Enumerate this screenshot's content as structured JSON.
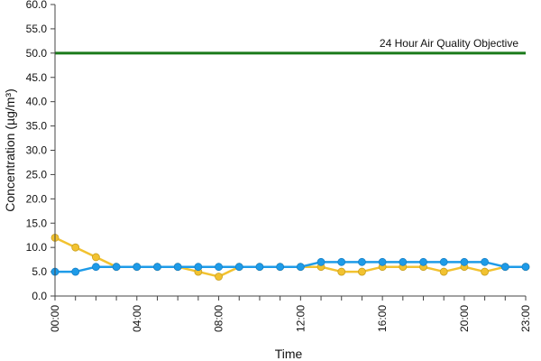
{
  "chart_data": {
    "type": "line",
    "title": "",
    "xlabel": "Time",
    "ylabel": "Concentration (µg/m³)",
    "ylim": [
      0,
      60
    ],
    "yticks": [
      "0.0",
      "5.0",
      "10.0",
      "15.0",
      "20.0",
      "25.0",
      "30.0",
      "35.0",
      "40.0",
      "45.0",
      "50.0",
      "55.0",
      "60.0"
    ],
    "x": [
      "00:00",
      "01:00",
      "02:00",
      "03:00",
      "04:00",
      "05:00",
      "06:00",
      "07:00",
      "08:00",
      "09:00",
      "10:00",
      "11:00",
      "12:00",
      "13:00",
      "14:00",
      "15:00",
      "16:00",
      "17:00",
      "18:00",
      "19:00",
      "20:00",
      "21:00",
      "22:00",
      "23:00"
    ],
    "xtick_labels": [
      "00:00",
      "04:00",
      "08:00",
      "12:00",
      "16:00",
      "20:00",
      "23:00"
    ],
    "grid": false,
    "series": [
      {
        "color": "#f2c230",
        "values": [
          12,
          10,
          8,
          6,
          6,
          6,
          6,
          5,
          4,
          6,
          6,
          6,
          6,
          6,
          5,
          5,
          6,
          6,
          6,
          5,
          6,
          5,
          6,
          6
        ]
      },
      {
        "color": "#1e9be8",
        "values": [
          5,
          5,
          6,
          6,
          6,
          6,
          6,
          6,
          6,
          6,
          6,
          6,
          6,
          7,
          7,
          7,
          7,
          7,
          7,
          7,
          7,
          7,
          6,
          6
        ]
      }
    ],
    "reference_line": {
      "value": 50,
      "label": "24 Hour Air Quality Objective",
      "color": "#1a7a1a"
    }
  }
}
